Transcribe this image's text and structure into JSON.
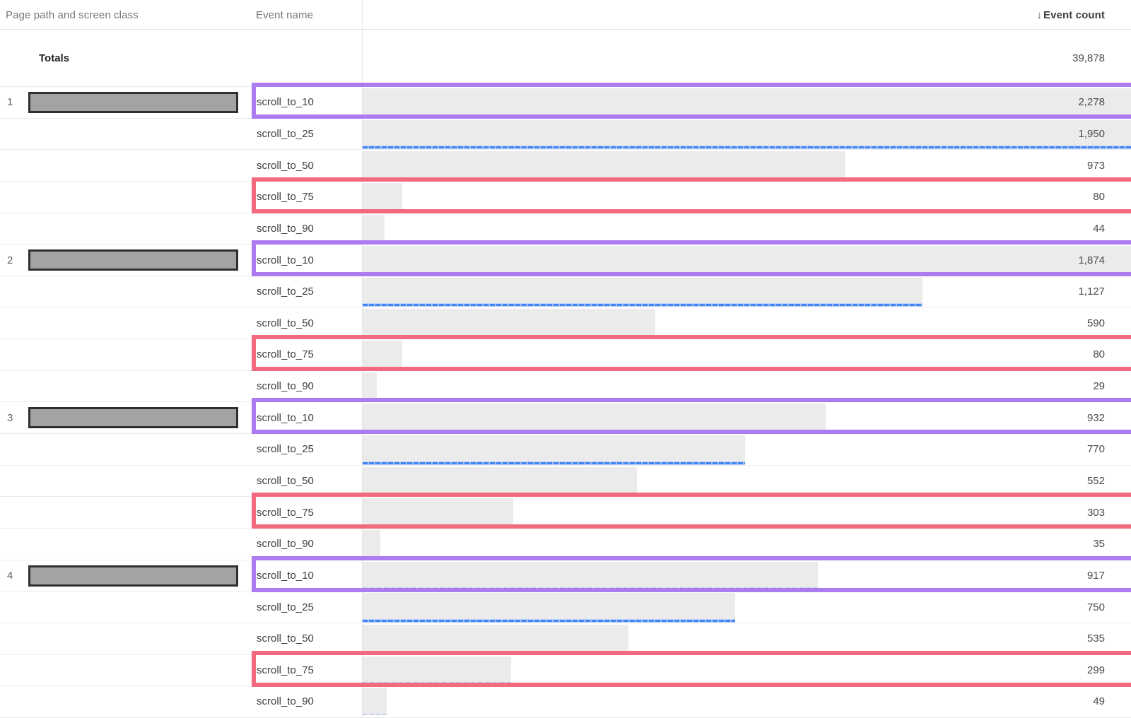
{
  "header": {
    "col_page_path": "Page path and screen class",
    "col_event_name": "Event name",
    "col_event_count": "Event count",
    "sort_icon": "↓"
  },
  "totals": {
    "label": "Totals",
    "value": "39,878"
  },
  "bar_scale_max": 2278,
  "groups": [
    {
      "row_number": "1",
      "page_path_redacted": true,
      "events": [
        {
          "name": "scroll_to_10",
          "count": 2278,
          "count_display": "2,278",
          "highlight": "purple"
        },
        {
          "name": "scroll_to_25",
          "count": 1950,
          "count_display": "1,950",
          "blue_line": true
        },
        {
          "name": "scroll_to_50",
          "count": 973,
          "count_display": "973"
        },
        {
          "name": "scroll_to_75",
          "count": 80,
          "count_display": "80",
          "highlight": "red"
        },
        {
          "name": "scroll_to_90",
          "count": 44,
          "count_display": "44"
        }
      ]
    },
    {
      "row_number": "2",
      "page_path_redacted": true,
      "events": [
        {
          "name": "scroll_to_10",
          "count": 1874,
          "count_display": "1,874",
          "highlight": "purple"
        },
        {
          "name": "scroll_to_25",
          "count": 1127,
          "count_display": "1,127",
          "blue_line": true
        },
        {
          "name": "scroll_to_50",
          "count": 590,
          "count_display": "590"
        },
        {
          "name": "scroll_to_75",
          "count": 80,
          "count_display": "80",
          "highlight": "red"
        },
        {
          "name": "scroll_to_90",
          "count": 29,
          "count_display": "29"
        }
      ]
    },
    {
      "row_number": "3",
      "page_path_redacted": true,
      "events": [
        {
          "name": "scroll_to_10",
          "count": 932,
          "count_display": "932",
          "highlight": "purple"
        },
        {
          "name": "scroll_to_25",
          "count": 770,
          "count_display": "770",
          "blue_line": true
        },
        {
          "name": "scroll_to_50",
          "count": 552,
          "count_display": "552"
        },
        {
          "name": "scroll_to_75",
          "count": 303,
          "count_display": "303",
          "highlight": "red"
        },
        {
          "name": "scroll_to_90",
          "count": 35,
          "count_display": "35"
        }
      ]
    },
    {
      "row_number": "4",
      "page_path_redacted": true,
      "events": [
        {
          "name": "scroll_to_10",
          "count": 917,
          "count_display": "917",
          "highlight": "purple"
        },
        {
          "name": "scroll_to_25",
          "count": 750,
          "count_display": "750",
          "blue_line": true
        },
        {
          "name": "scroll_to_50",
          "count": 535,
          "count_display": "535"
        },
        {
          "name": "scroll_to_75",
          "count": 299,
          "count_display": "299",
          "highlight": "red"
        },
        {
          "name": "scroll_to_90",
          "count": 49,
          "count_display": "49"
        }
      ]
    }
  ],
  "colors": {
    "purple_highlight": "#ad7bf0",
    "red_highlight": "#f16a7d",
    "blue_line": "#4285f4",
    "bar_fill": "#ebebeb",
    "redaction_fill": "#a3a3a3",
    "redaction_border": "#2f2f2f"
  }
}
